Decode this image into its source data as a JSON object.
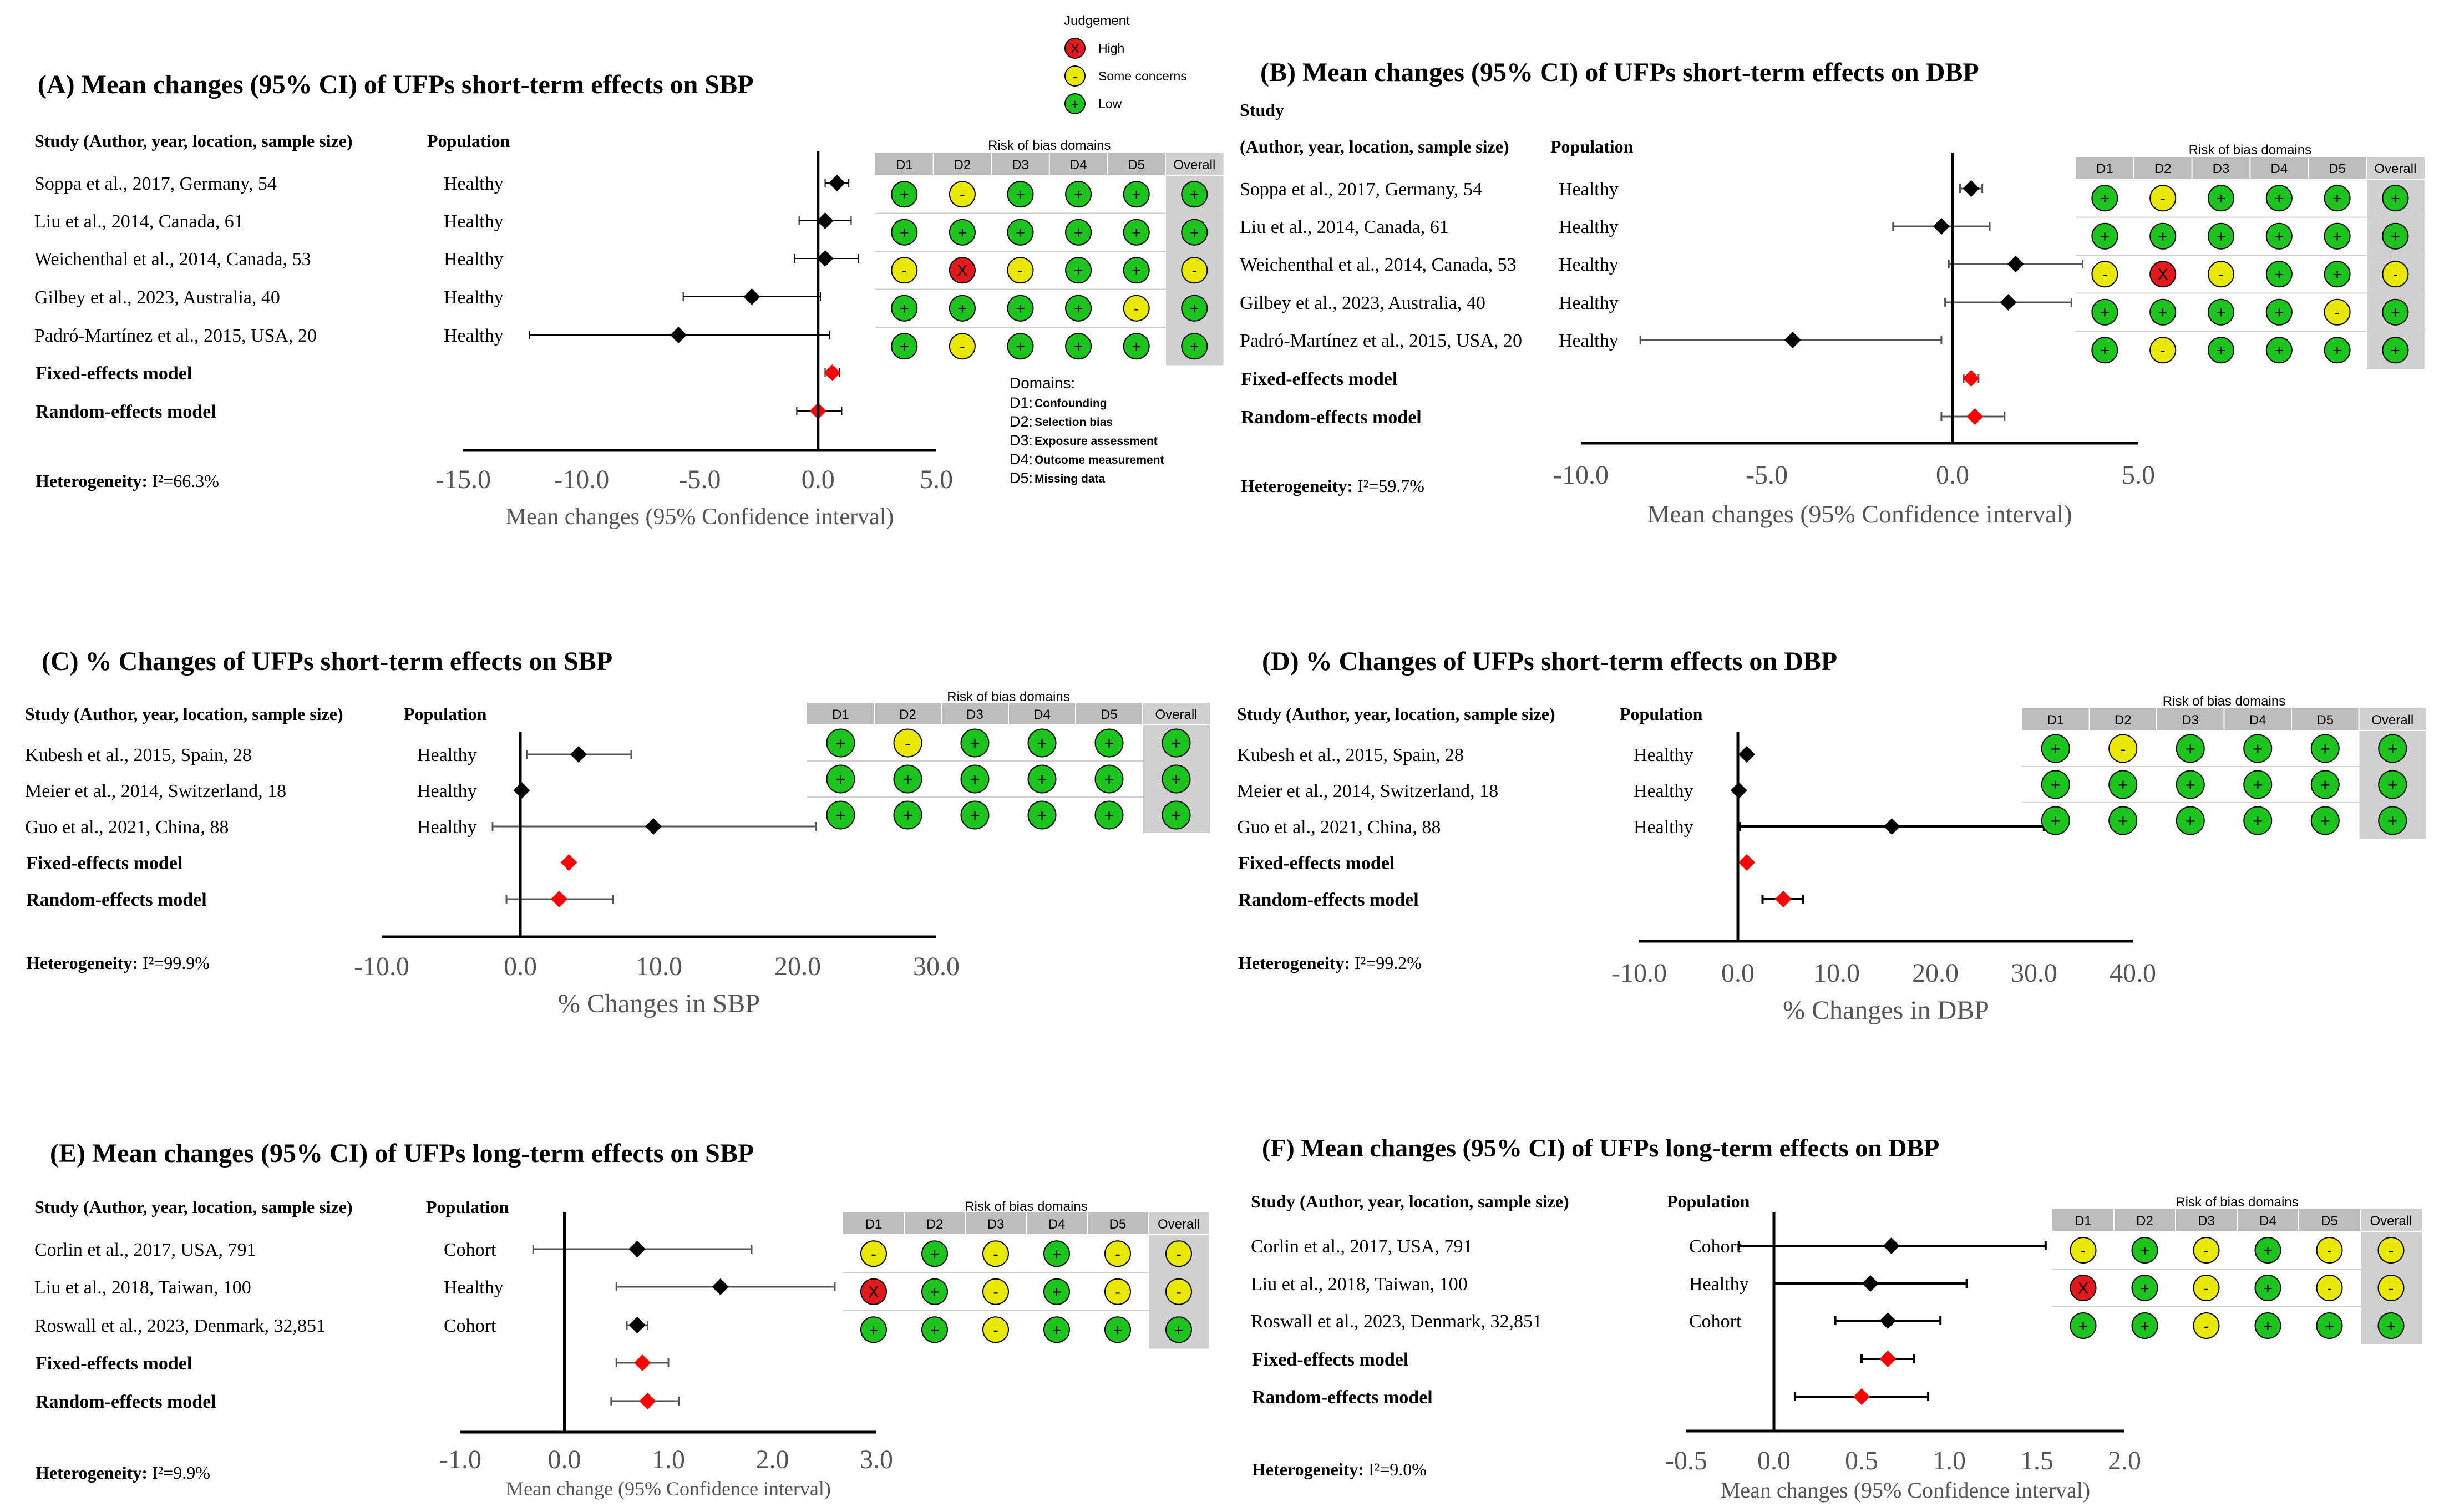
{
  "legend": {
    "title": "Judgement",
    "items": [
      {
        "symbol": "X",
        "label": "High",
        "color": "#e31a1c"
      },
      {
        "symbol": "-",
        "label": "Some concerns",
        "color": "#e8e800"
      },
      {
        "symbol": "+",
        "label": "Low",
        "color": "#1ec41e"
      }
    ]
  },
  "domains_legend": {
    "title": "Domains:",
    "items": [
      {
        "code": "D1:",
        "label": "Confounding"
      },
      {
        "code": "D2:",
        "label": "Selection bias"
      },
      {
        "code": "D3:",
        "label": "Exposure assessment"
      },
      {
        "code": "D4:",
        "label": "Outcome measurement"
      },
      {
        "code": "D5:",
        "label": "Missing data"
      }
    ]
  },
  "rob_header": "Risk of bias domains",
  "rob_columns": [
    "D1",
    "D2",
    "D3",
    "D4",
    "D5",
    "Overall"
  ],
  "chart_data": [
    {
      "type": "forest",
      "title": "(A) Mean changes (95% CI) of UFPs short-term effects on SBP",
      "study_header": "Study (Author, year, location, sample size)",
      "population_header": "Population",
      "studies": [
        {
          "label": "Soppa et al., 2017, Germany, 54",
          "population": "Healthy",
          "est": 0.8,
          "lo": 0.3,
          "hi": 1.3,
          "rob": [
            "+",
            "-",
            "+",
            "+",
            "+",
            "+"
          ]
        },
        {
          "label": "Liu et al., 2014, Canada, 61",
          "population": "Healthy",
          "est": 0.3,
          "lo": -0.8,
          "hi": 1.4,
          "rob": [
            "+",
            "+",
            "+",
            "+",
            "+",
            "+"
          ]
        },
        {
          "label": "Weichenthal et al., 2014, Canada, 53",
          "population": "Healthy",
          "est": 0.3,
          "lo": -1.0,
          "hi": 1.7,
          "rob": [
            "-",
            "X",
            "-",
            "+",
            "+",
            "-"
          ]
        },
        {
          "label": "Gilbey et al., 2023, Australia, 40",
          "population": "Healthy",
          "est": -2.8,
          "lo": -5.7,
          "hi": 0.1,
          "rob": [
            "+",
            "+",
            "+",
            "+",
            "-",
            "+"
          ]
        },
        {
          "label": "Padró-Martínez et al., 2015, USA, 20",
          "population": "Healthy",
          "est": -5.9,
          "lo": -12.2,
          "hi": 0.5,
          "rob": [
            "+",
            "-",
            "+",
            "+",
            "+",
            "+"
          ]
        }
      ],
      "fixed": {
        "label": "Fixed-effects model",
        "est": 0.6,
        "lo": 0.3,
        "hi": 0.9
      },
      "random": {
        "label": "Random-effects model",
        "est": 0.0,
        "lo": -0.9,
        "hi": 1.0
      },
      "heterogeneity_label": "Heterogeneity:",
      "heterogeneity_value": "I²=66.3%",
      "ticks": [
        -15.0,
        -10.0,
        -5.0,
        0.0,
        5.0
      ],
      "tick_labels": [
        "-15.0",
        "-10.0",
        "-5.0",
        "0.0",
        "5.0"
      ],
      "xlim": [
        -15,
        5
      ],
      "xlabel": "Mean changes (95% Confidence interval)"
    },
    {
      "type": "forest",
      "title": "(B) Mean changes (95% CI) of UFPs short-term effects on DBP",
      "study_header_top": "Study",
      "study_header": "(Author, year, location, sample size)",
      "population_header": "Population",
      "studies": [
        {
          "label": "Soppa et al., 2017, Germany, 54",
          "population": "Healthy",
          "est": 0.5,
          "lo": 0.2,
          "hi": 0.8,
          "rob": [
            "+",
            "-",
            "+",
            "+",
            "+",
            "+"
          ]
        },
        {
          "label": "Liu et al., 2014, Canada, 61",
          "population": "Healthy",
          "est": -0.3,
          "lo": -1.6,
          "hi": 1.0,
          "rob": [
            "+",
            "+",
            "+",
            "+",
            "+",
            "+"
          ]
        },
        {
          "label": "Weichenthal et al., 2014, Canada, 53",
          "population": "Healthy",
          "est": 1.7,
          "lo": -0.1,
          "hi": 3.5,
          "rob": [
            "-",
            "X",
            "-",
            "+",
            "+",
            "-"
          ]
        },
        {
          "label": "Gilbey et al., 2023, Australia, 40",
          "population": "Healthy",
          "est": 1.5,
          "lo": -0.2,
          "hi": 3.2,
          "rob": [
            "+",
            "+",
            "+",
            "+",
            "-",
            "+"
          ]
        },
        {
          "label": "Padró-Martínez et al., 2015, USA, 20",
          "population": "Healthy",
          "est": -4.3,
          "lo": -8.4,
          "hi": -0.3,
          "rob": [
            "+",
            "-",
            "+",
            "+",
            "+",
            "+"
          ]
        }
      ],
      "fixed": {
        "label": "Fixed-effects model",
        "est": 0.5,
        "lo": 0.3,
        "hi": 0.7
      },
      "random": {
        "label": "Random-effects model",
        "est": 0.6,
        "lo": -0.3,
        "hi": 1.4
      },
      "heterogeneity_label": "Heterogeneity:",
      "heterogeneity_value": "I²=59.7%",
      "ticks": [
        -10.0,
        -5.0,
        0.0,
        5.0
      ],
      "tick_labels": [
        "-10.0",
        "-5.0",
        "0.0",
        "5.0"
      ],
      "xlim": [
        -10,
        5
      ],
      "xlabel": "Mean changes (95% Confidence interval)"
    },
    {
      "type": "forest",
      "title": "(C) % Changes of UFPs short-term effects on SBP",
      "study_header": "Study (Author, year, location, sample size)",
      "population_header": "Population",
      "studies": [
        {
          "label": "Kubesh et al., 2015, Spain, 28",
          "population": "Healthy",
          "est": 4.2,
          "lo": 0.5,
          "hi": 8.0,
          "rob": [
            "+",
            "-",
            "+",
            "+",
            "+",
            "+"
          ]
        },
        {
          "label": "Meier et al., 2014, Switzerland, 18",
          "population": "Healthy",
          "est": 0.1,
          "lo": 0.0,
          "hi": 0.2,
          "rob": [
            "+",
            "+",
            "+",
            "+",
            "+",
            "+"
          ]
        },
        {
          "label": "Guo et al., 2021, China, 88",
          "population": "Healthy",
          "est": 9.6,
          "lo": -2.0,
          "hi": 21.3,
          "rob": [
            "+",
            "+",
            "+",
            "+",
            "+",
            "+"
          ]
        }
      ],
      "fixed": {
        "label": "Fixed-effects model",
        "est": 3.5,
        "lo": 3.3,
        "hi": 3.7
      },
      "random": {
        "label": "Random-effects model",
        "est": 2.8,
        "lo": -1.0,
        "hi": 6.7
      },
      "heterogeneity_label": "Heterogeneity:",
      "heterogeneity_value": "I²=99.9%",
      "ticks": [
        -10.0,
        0.0,
        10.0,
        20.0,
        30.0
      ],
      "tick_labels": [
        "-10.0",
        "0.0",
        "10.0",
        "20.0",
        "30.0"
      ],
      "xlim": [
        -10,
        30
      ],
      "xlabel": "% Changes in SBP"
    },
    {
      "type": "forest",
      "title": "(D) % Changes of UFPs short-term effects on DBP",
      "study_header": "Study (Author, year, location, sample size)",
      "population_header": "Population",
      "studies": [
        {
          "label": "Kubesh et al., 2015, Spain, 28",
          "population": "Healthy",
          "est": 0.9,
          "lo": 0.6,
          "hi": 1.2,
          "rob": [
            "+",
            "-",
            "+",
            "+",
            "+",
            "+"
          ]
        },
        {
          "label": "Meier et al., 2014, Switzerland, 18",
          "population": "Healthy",
          "est": 0.1,
          "lo": 0.0,
          "hi": 0.2,
          "rob": [
            "+",
            "+",
            "+",
            "+",
            "+",
            "+"
          ]
        },
        {
          "label": "Guo et al., 2021, China, 88",
          "population": "Healthy",
          "est": 15.6,
          "lo": 0.2,
          "hi": 31.0,
          "rob": [
            "+",
            "+",
            "+",
            "+",
            "+",
            "+"
          ]
        }
      ],
      "fixed": {
        "label": "Fixed-effects model",
        "est": 0.9,
        "lo": 0.7,
        "hi": 1.1
      },
      "random": {
        "label": "Random-effects model",
        "est": 4.6,
        "lo": 2.5,
        "hi": 6.6
      },
      "heterogeneity_label": "Heterogeneity:",
      "heterogeneity_value": "I²=99.2%",
      "ticks": [
        -10.0,
        0.0,
        10.0,
        20.0,
        30.0,
        40.0
      ],
      "tick_labels": [
        "-10.0",
        "0.0",
        "10.0",
        "20.0",
        "30.0",
        "40.0"
      ],
      "xlim": [
        -10,
        40
      ],
      "xlabel": "% Changes in DBP"
    },
    {
      "type": "forest",
      "title": "(E) Mean changes (95% CI) of UFPs long-term effects on SBP",
      "study_header": "Study (Author, year, location, sample size)",
      "population_header": "Population",
      "studies": [
        {
          "label": "Corlin et al., 2017, USA, 791",
          "population": "Cohort",
          "est": 0.7,
          "lo": -0.3,
          "hi": 1.8,
          "rob": [
            "-",
            "+",
            "-",
            "+",
            "-",
            "-"
          ]
        },
        {
          "label": "Liu et al., 2018, Taiwan, 100",
          "population": "Healthy",
          "est": 1.5,
          "lo": 0.5,
          "hi": 2.6,
          "rob": [
            "X",
            "+",
            "-",
            "+",
            "-",
            "-"
          ]
        },
        {
          "label": "Roswall et al., 2023, Denmark, 32,851",
          "population": "Cohort",
          "est": 0.7,
          "lo": 0.6,
          "hi": 0.8,
          "rob": [
            "+",
            "+",
            "-",
            "+",
            "+",
            "+"
          ]
        }
      ],
      "fixed": {
        "label": "Fixed-effects model",
        "est": 0.75,
        "lo": 0.5,
        "hi": 1.0
      },
      "random": {
        "label": "Random-effects model",
        "est": 0.8,
        "lo": 0.45,
        "hi": 1.1
      },
      "heterogeneity_label": "Heterogeneity:",
      "heterogeneity_value": "I²=9.9%",
      "ticks": [
        -1.0,
        0.0,
        1.0,
        2.0,
        3.0
      ],
      "tick_labels": [
        "-1.0",
        "0.0",
        "1.0",
        "2.0",
        "3.0"
      ],
      "xlim": [
        -1,
        3
      ],
      "xlabel": "Mean change (95% Confidence interval)"
    },
    {
      "type": "forest",
      "title": "(F) Mean changes (95% CI) of UFPs long-term effects on DBP",
      "study_header": "Study (Author, year, location, sample size)",
      "population_header": "Population",
      "studies": [
        {
          "label": "Corlin et al., 2017, USA, 791",
          "population": "Cohort",
          "est": 0.67,
          "lo": -0.2,
          "hi": 1.55,
          "rob": [
            "-",
            "+",
            "-",
            "+",
            "-",
            "-"
          ]
        },
        {
          "label": "Liu et al., 2018, Taiwan, 100",
          "population": "Healthy",
          "est": 0.55,
          "lo": 0.0,
          "hi": 1.1,
          "rob": [
            "X",
            "+",
            "-",
            "+",
            "-",
            "-"
          ]
        },
        {
          "label": "Roswall et al., 2023, Denmark, 32,851",
          "population": "Cohort",
          "est": 0.65,
          "lo": 0.35,
          "hi": 0.95,
          "rob": [
            "+",
            "+",
            "-",
            "+",
            "+",
            "+"
          ]
        }
      ],
      "fixed": {
        "label": "Fixed-effects model",
        "est": 0.65,
        "lo": 0.5,
        "hi": 0.8
      },
      "random": {
        "label": "Random-effects model",
        "est": 0.5,
        "lo": 0.12,
        "hi": 0.88
      },
      "heterogeneity_label": "Heterogeneity:",
      "heterogeneity_value": "I²=9.0%",
      "ticks": [
        -0.5,
        0.0,
        0.5,
        1.0,
        1.5,
        2.0
      ],
      "tick_labels": [
        "-0.5",
        "0.0",
        "0.5",
        "1.0",
        "1.5",
        "2.0"
      ],
      "xlim": [
        -0.5,
        2
      ],
      "xlabel": "Mean changes (95% Confidence interval)"
    }
  ]
}
